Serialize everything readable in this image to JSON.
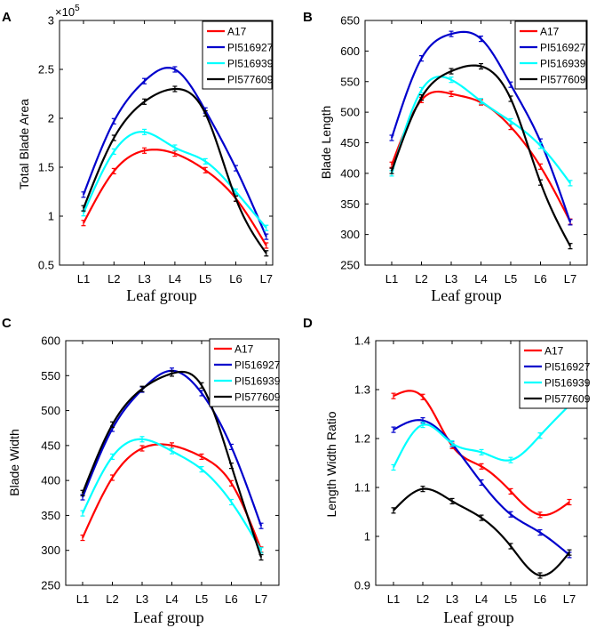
{
  "figure": {
    "panels": [
      {
        "letter": "A",
        "exponent_label": "×10",
        "exponent_power": "5",
        "ytick_labels": [
          "0.5",
          "1",
          "1.5",
          "2",
          "2.5",
          "3"
        ],
        "legend": [
          "A17",
          "PI516927",
          "PI516939",
          "PI577609"
        ]
      },
      {
        "letter": "B",
        "ytick_labels": [
          "250",
          "300",
          "350",
          "400",
          "450",
          "500",
          "550",
          "600",
          "650"
        ],
        "legend": [
          "A17",
          "PI516927",
          "PI516939",
          "PI577609"
        ]
      },
      {
        "letter": "C",
        "ytick_labels": [
          "250",
          "300",
          "350",
          "400",
          "450",
          "500",
          "550",
          "600"
        ],
        "legend": [
          "A17",
          "PI516927",
          "PI516939",
          "PI577609"
        ]
      },
      {
        "letter": "D",
        "ytick_labels": [
          "0.9",
          "1",
          "1.1",
          "1.2",
          "1.3",
          "1.4"
        ],
        "legend": [
          "A17",
          "PI516927",
          "PI516939",
          "PI577609"
        ]
      }
    ]
  },
  "chart_data": [
    {
      "type": "line",
      "panel": "A",
      "title": "",
      "xlabel": "Leaf group",
      "ylabel": "Total Blade Area",
      "y_multiplier": "×10^5",
      "categories": [
        "L1",
        "L2",
        "L3",
        "L4",
        "L5",
        "L6",
        "L7"
      ],
      "ylim": [
        0.5,
        3.0
      ],
      "yticks": [
        0.5,
        1,
        1.5,
        2,
        2.5,
        3
      ],
      "grid": false,
      "legend_position": "top-right",
      "series": [
        {
          "name": "A17",
          "color": "#ff0000",
          "values": [
            0.93,
            1.46,
            1.67,
            1.64,
            1.47,
            1.18,
            0.7
          ]
        },
        {
          "name": "PI516927",
          "color": "#0000cc",
          "values": [
            1.22,
            1.97,
            2.38,
            2.5,
            2.08,
            1.49,
            0.79
          ]
        },
        {
          "name": "PI516939",
          "color": "#00ffff",
          "values": [
            1.03,
            1.66,
            1.86,
            1.7,
            1.56,
            1.25,
            0.88
          ]
        },
        {
          "name": "PI577609",
          "color": "#000000",
          "values": [
            1.08,
            1.8,
            2.17,
            2.3,
            2.05,
            1.18,
            0.62
          ]
        }
      ]
    },
    {
      "type": "line",
      "panel": "B",
      "title": "",
      "xlabel": "Leaf group",
      "ylabel": "Blade Length",
      "categories": [
        "L1",
        "L2",
        "L3",
        "L4",
        "L5",
        "L6",
        "L7"
      ],
      "ylim": [
        250,
        650
      ],
      "yticks": [
        250,
        300,
        350,
        400,
        450,
        500,
        550,
        600,
        650
      ],
      "grid": false,
      "legend_position": "top-right",
      "series": [
        {
          "name": "A17",
          "color": "#ff0000",
          "values": [
            414,
            520,
            530,
            516,
            476,
            411,
            321
          ]
        },
        {
          "name": "PI516927",
          "color": "#0000cc",
          "values": [
            458,
            588,
            628,
            620,
            545,
            452,
            320
          ]
        },
        {
          "name": "PI516939",
          "color": "#00ffff",
          "values": [
            400,
            536,
            553,
            518,
            485,
            445,
            384
          ]
        },
        {
          "name": "PI577609",
          "color": "#000000",
          "values": [
            404,
            524,
            567,
            575,
            522,
            385,
            281
          ]
        }
      ]
    },
    {
      "type": "line",
      "panel": "C",
      "title": "",
      "xlabel": "Leaf group",
      "ylabel": "Blade Width",
      "categories": [
        "L1",
        "L2",
        "L3",
        "L4",
        "L5",
        "L6",
        "L7"
      ],
      "ylim": [
        250,
        600
      ],
      "yticks": [
        250,
        300,
        350,
        400,
        450,
        500,
        550,
        600
      ],
      "grid": false,
      "legend_position": "top-right",
      "series": [
        {
          "name": "A17",
          "color": "#ff0000",
          "values": [
            318,
            404,
            446,
            450,
            434,
            396,
            301
          ]
        },
        {
          "name": "PI516927",
          "color": "#0000cc",
          "values": [
            376,
            474,
            530,
            557,
            525,
            448,
            335
          ]
        },
        {
          "name": "PI516939",
          "color": "#00ffff",
          "values": [
            353,
            434,
            459,
            442,
            416,
            369,
            300
          ]
        },
        {
          "name": "PI577609",
          "color": "#000000",
          "values": [
            382,
            480,
            531,
            553,
            536,
            421,
            290
          ]
        }
      ]
    },
    {
      "type": "line",
      "panel": "D",
      "title": "",
      "xlabel": "Leaf group",
      "ylabel": "Length Width Ratio",
      "categories": [
        "L1",
        "L2",
        "L3",
        "L4",
        "L5",
        "L6",
        "L7"
      ],
      "ylim": [
        0.9,
        1.4
      ],
      "yticks": [
        0.9,
        1,
        1.1,
        1.2,
        1.3,
        1.4
      ],
      "grid": false,
      "legend_position": "top-right",
      "series": [
        {
          "name": "A17",
          "color": "#ff0000",
          "values": [
            1.287,
            1.285,
            1.185,
            1.143,
            1.092,
            1.044,
            1.07
          ]
        },
        {
          "name": "PI516927",
          "color": "#0000cc",
          "values": [
            1.218,
            1.237,
            1.189,
            1.11,
            1.045,
            1.008,
            0.962
          ]
        },
        {
          "name": "PI516939",
          "color": "#00ffff",
          "values": [
            1.141,
            1.228,
            1.19,
            1.172,
            1.156,
            1.206,
            1.268
          ]
        },
        {
          "name": "PI577609",
          "color": "#000000",
          "values": [
            1.053,
            1.097,
            1.072,
            1.038,
            0.98,
            0.92,
            0.967
          ]
        }
      ]
    }
  ]
}
